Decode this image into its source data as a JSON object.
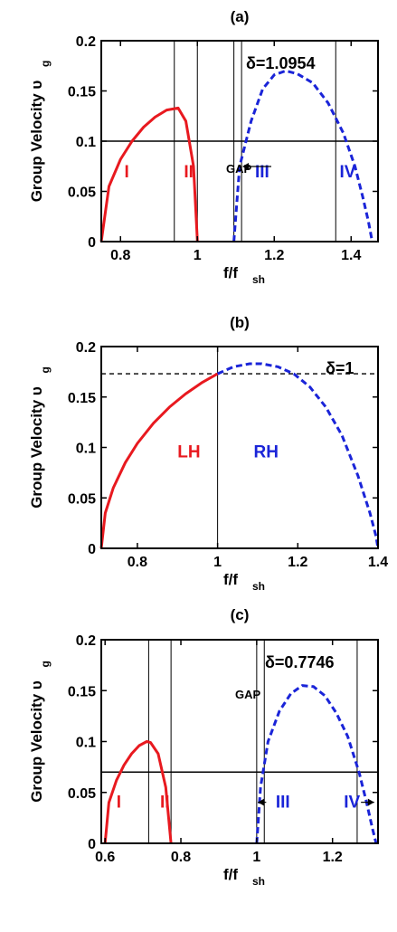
{
  "chart_data": [
    {
      "type": "line",
      "title": "(a)",
      "xlabel": "f/f",
      "xlabel_sub": "sh",
      "ylabel": "Group Velocity υ",
      "ylabel_sub": "g",
      "xlim": [
        0.75,
        1.47
      ],
      "ylim": [
        0,
        0.2
      ],
      "xticks": [
        0.8,
        1,
        1.2,
        1.4
      ],
      "xtick_labels": [
        "0.8",
        "1",
        "1.2",
        "1.4"
      ],
      "yticks": [
        0,
        0.05,
        0.1,
        0.15,
        0.2
      ],
      "ytick_labels": [
        "0",
        "0.05",
        "0.1",
        "0.15",
        "0.2"
      ],
      "grid": false,
      "series": [
        {
          "color": "#e8191f",
          "style": "solid",
          "x": [
            0.75,
            0.77,
            0.8,
            0.83,
            0.86,
            0.89,
            0.92,
            0.95,
            0.97,
            0.99,
            1.0
          ],
          "y": [
            0,
            0.055,
            0.082,
            0.1,
            0.114,
            0.124,
            0.131,
            0.133,
            0.12,
            0.075,
            0
          ]
        },
        {
          "color": "#1a24d8",
          "style": "dashed",
          "x": [
            1.095,
            1.11,
            1.14,
            1.17,
            1.2,
            1.23,
            1.26,
            1.3,
            1.34,
            1.38,
            1.41,
            1.43,
            1.445,
            1.455
          ],
          "y": [
            0,
            0.075,
            0.12,
            0.152,
            0.166,
            0.17,
            0.167,
            0.158,
            0.138,
            0.108,
            0.075,
            0.045,
            0.02,
            0
          ]
        }
      ],
      "hlines": [
        0.1
      ],
      "vlines": [
        0.94,
        1.0,
        1.095,
        1.115,
        1.36
      ],
      "labels": [
        {
          "text": "I",
          "x": 0.81,
          "y": 0.064,
          "color": "#e8191f"
        },
        {
          "text": "II",
          "x": 0.965,
          "y": 0.064,
          "color": "#e8191f"
        },
        {
          "text": "III",
          "x": 1.15,
          "y": 0.064,
          "color": "#1a24d8"
        },
        {
          "text": "IV",
          "x": 1.37,
          "y": 0.064,
          "color": "#1a24d8"
        }
      ],
      "annotation": "δ=1.0954",
      "gap_label": "GAP"
    },
    {
      "type": "line",
      "title": "(b)",
      "xlabel": "f/f",
      "xlabel_sub": "sh",
      "ylabel": "Group Velocity υ",
      "ylabel_sub": "g",
      "xlim": [
        0.71,
        1.4
      ],
      "ylim": [
        0,
        0.2
      ],
      "xticks": [
        0.8,
        1,
        1.2,
        1.4
      ],
      "xtick_labels": [
        "0.8",
        "1",
        "1.2",
        "1.4"
      ],
      "yticks": [
        0,
        0.05,
        0.1,
        0.15,
        0.2
      ],
      "ytick_labels": [
        "0",
        "0.05",
        "0.1",
        "0.15",
        "0.2"
      ],
      "grid": false,
      "series": [
        {
          "color": "#e8191f",
          "style": "solid",
          "x": [
            0.71,
            0.72,
            0.74,
            0.77,
            0.8,
            0.84,
            0.88,
            0.92,
            0.96,
            1.0
          ],
          "y": [
            0,
            0.035,
            0.06,
            0.085,
            0.104,
            0.124,
            0.14,
            0.153,
            0.164,
            0.173
          ]
        },
        {
          "color": "#1a24d8",
          "style": "dashed",
          "x": [
            1.0,
            1.04,
            1.08,
            1.11,
            1.15,
            1.19,
            1.23,
            1.27,
            1.31,
            1.35,
            1.38,
            1.395,
            1.4
          ],
          "y": [
            0.173,
            0.18,
            0.183,
            0.183,
            0.18,
            0.173,
            0.16,
            0.14,
            0.112,
            0.072,
            0.035,
            0.012,
            0
          ]
        }
      ],
      "hlines_dashed": [
        0.173
      ],
      "vlines": [
        1.0
      ],
      "labels": [
        {
          "text": "LH",
          "x": 0.9,
          "y": 0.09,
          "color": "#e8191f"
        },
        {
          "text": "RH",
          "x": 1.09,
          "y": 0.09,
          "color": "#1a24d8"
        }
      ],
      "annotation": "δ=1"
    },
    {
      "type": "line",
      "title": "(c)",
      "xlabel": "f/f",
      "xlabel_sub": "sh",
      "ylabel": "Group Velocity υ",
      "ylabel_sub": "g",
      "xlim": [
        0.59,
        1.32
      ],
      "ylim": [
        0,
        0.2
      ],
      "xticks": [
        0.6,
        0.8,
        1,
        1.2
      ],
      "xtick_labels": [
        "0.6",
        "0.8",
        "1",
        "1.2"
      ],
      "yticks": [
        0,
        0.05,
        0.1,
        0.15,
        0.2
      ],
      "ytick_labels": [
        "0",
        "0.05",
        "0.1",
        "0.15",
        "0.2"
      ],
      "grid": false,
      "series": [
        {
          "color": "#e8191f",
          "style": "solid",
          "x": [
            0.6,
            0.61,
            0.63,
            0.65,
            0.67,
            0.69,
            0.71,
            0.72,
            0.74,
            0.76,
            0.774
          ],
          "y": [
            0,
            0.04,
            0.062,
            0.077,
            0.088,
            0.096,
            0.1,
            0.099,
            0.088,
            0.055,
            0
          ]
        },
        {
          "color": "#1a24d8",
          "style": "dashed",
          "x": [
            1.0,
            1.01,
            1.03,
            1.06,
            1.09,
            1.12,
            1.15,
            1.18,
            1.21,
            1.24,
            1.27,
            1.29,
            1.305,
            1.315
          ],
          "y": [
            0,
            0.055,
            0.1,
            0.13,
            0.147,
            0.155,
            0.154,
            0.145,
            0.128,
            0.105,
            0.07,
            0.04,
            0.015,
            0
          ]
        }
      ],
      "hlines": [
        0.07
      ],
      "vlines": [
        0.715,
        0.774,
        1.0,
        1.02,
        1.265
      ],
      "labels": [
        {
          "text": "I",
          "x": 0.63,
          "y": 0.035,
          "color": "#e8191f"
        },
        {
          "text": "II",
          "x": 0.745,
          "y": 0.035,
          "color": "#e8191f"
        },
        {
          "text": "III",
          "x": 1.05,
          "y": 0.035,
          "color": "#1a24d8"
        },
        {
          "text": "IV",
          "x": 1.23,
          "y": 0.035,
          "color": "#1a24d8"
        }
      ],
      "annotation": "δ=0.7746",
      "gap_label": "GAP"
    }
  ]
}
